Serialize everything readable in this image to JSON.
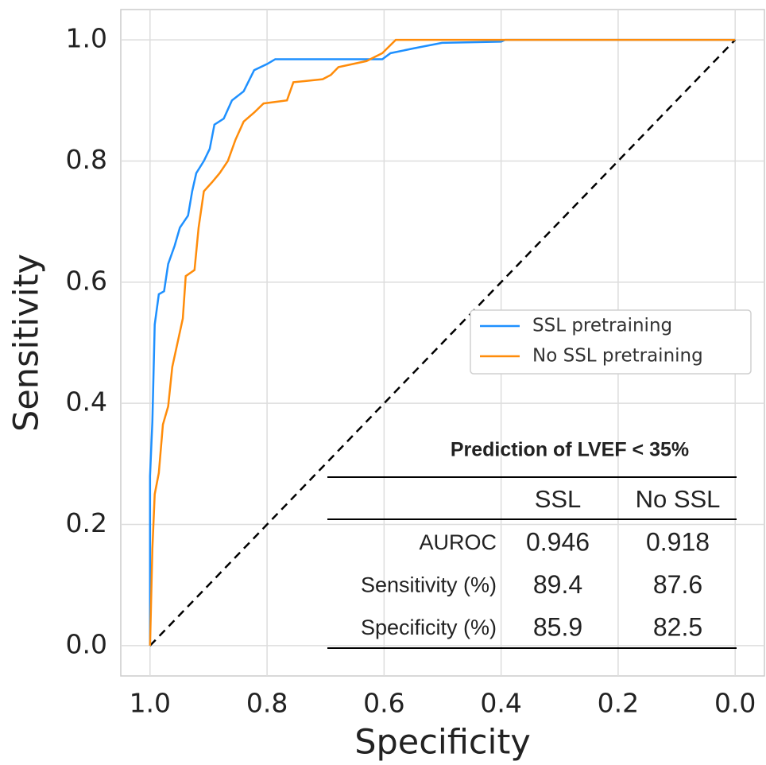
{
  "chart_data": {
    "type": "line",
    "xlabel": "Specificity",
    "ylabel": "Sensitivity",
    "xlim": [
      1.05,
      -0.05
    ],
    "ylim": [
      -0.05,
      1.05
    ],
    "xticks": [
      {
        "value": 1,
        "label": "1.0"
      },
      0.8,
      0.6,
      0.4,
      0.2,
      {
        "value": 0,
        "label": "0.0"
      }
    ],
    "yticks": [
      {
        "value": 0,
        "label": "0.0"
      },
      0.2,
      0.4,
      0.6,
      0.8,
      {
        "value": 1,
        "label": "1.0"
      }
    ],
    "grid": true,
    "legend": "center right",
    "series": [
      {
        "name": "SSL pretraining",
        "color": "#1e90ff",
        "x": [
          1,
          1,
          0.996,
          0.992,
          0.985,
          0.976,
          0.969,
          0.958,
          0.949,
          0.935,
          0.928,
          0.921,
          0.908,
          0.898,
          0.89,
          0.874,
          0.86,
          0.84,
          0.822,
          0.8,
          0.786,
          0.603,
          0.589,
          0.549,
          0.501,
          0.4,
          0.393,
          0
        ],
        "y": [
          0,
          0.28,
          0.37,
          0.53,
          0.58,
          0.585,
          0.63,
          0.66,
          0.69,
          0.71,
          0.75,
          0.78,
          0.8,
          0.82,
          0.86,
          0.87,
          0.9,
          0.915,
          0.95,
          0.96,
          0.968,
          0.968,
          0.978,
          0.986,
          0.995,
          0.997,
          1,
          1
        ]
      },
      {
        "name": "No SSL pretraining",
        "color": "#ff8c0a",
        "x": [
          1,
          0.996,
          0.992,
          0.985,
          0.978,
          0.969,
          0.962,
          0.953,
          0.944,
          0.939,
          0.924,
          0.917,
          0.908,
          0.894,
          0.881,
          0.867,
          0.854,
          0.84,
          0.822,
          0.806,
          0.766,
          0.755,
          0.705,
          0.691,
          0.678,
          0.63,
          0.603,
          0.58,
          0
        ],
        "y": [
          0,
          0.16,
          0.25,
          0.285,
          0.365,
          0.395,
          0.46,
          0.5,
          0.54,
          0.61,
          0.62,
          0.69,
          0.75,
          0.765,
          0.78,
          0.8,
          0.835,
          0.865,
          0.88,
          0.895,
          0.9,
          0.93,
          0.935,
          0.942,
          0.955,
          0.965,
          0.978,
          1,
          1
        ]
      }
    ],
    "reference_line": {
      "x": [
        1,
        0
      ],
      "y": [
        0,
        1
      ],
      "color": "#000000",
      "dashed": true
    },
    "table": {
      "title": "Prediction of LVEF < 35%",
      "columns": [
        "SSL",
        "No SSL"
      ],
      "rows": [
        {
          "label": "AUROC",
          "values": [
            0.946,
            0.918
          ]
        },
        {
          "label": "Sensitivity (%)",
          "values": [
            89.4,
            87.6
          ]
        },
        {
          "label": "Specificity (%)",
          "values": [
            85.9,
            82.5
          ]
        }
      ]
    }
  }
}
